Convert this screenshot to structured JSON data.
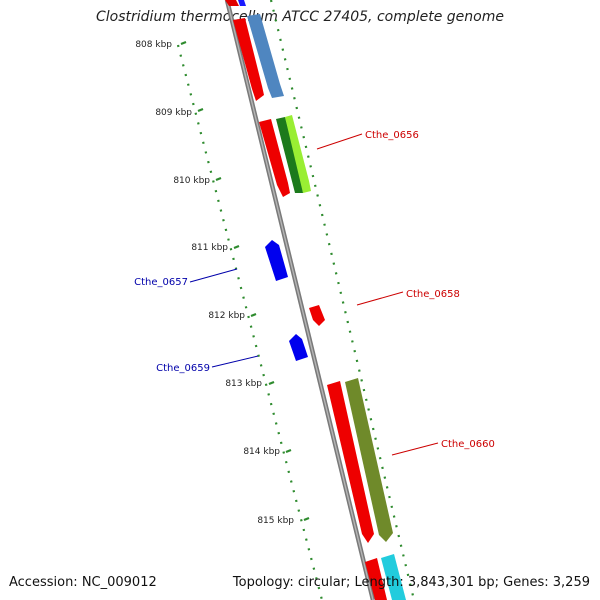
{
  "title": "Clostridium thermocellum ATCC 27405, complete genome",
  "accession": "Accession: NC_009012",
  "info": "Topology: circular; Length: 3,843,301 bp; Genes: 3,259",
  "colors": {
    "backbone": "#7a7a7a",
    "tick": "#2e8b2e",
    "forward_label": "#cc0000",
    "reverse_label": "#0000aa"
  },
  "kbp_labels": [
    "808 kbp",
    "809 kbp",
    "810 kbp",
    "811 kbp",
    "812 kbp",
    "813 kbp",
    "814 kbp",
    "815 kbp"
  ],
  "gene_labels": {
    "cthe_0656": "Cthe_0656",
    "cthe_0657": "Cthe_0657",
    "cthe_0658": "Cthe_0658",
    "cthe_0659": "Cthe_0659",
    "cthe_0660": "Cthe_0660"
  }
}
